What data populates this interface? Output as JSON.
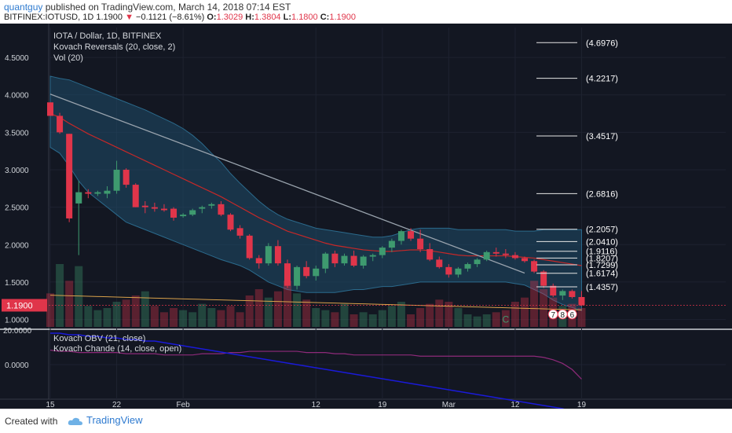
{
  "header": {
    "user": "quantguy",
    "published_text": "published on TradingView.com, March 14, 2018 07:14 EST",
    "symbol": "BITFINEX:IOTUSD, 1D",
    "last": "1.1900",
    "change": "−0.1121 (−8.61%)",
    "o_label": "O:",
    "o_val": "1.3029",
    "h_label": "H:",
    "h_val": "1.3804",
    "l_label": "L:",
    "l_val": "1.1800",
    "c_label": "C:",
    "c_val": "1.1900"
  },
  "legend": {
    "main_title": "IOTA / Dollar, 1D, BITFINEX",
    "ind1": "Kovach Reversals (20, close, 2)",
    "ind2": "Vol (20)",
    "ind3": "Kovach OBV (21, close)",
    "ind4": "Kovach Chande (14, close, open)"
  },
  "footer": {
    "created": "Created with",
    "brand": "TradingView"
  },
  "colors": {
    "up": "#3e9a6f",
    "down": "#e0354a",
    "band": "#1f4d6a",
    "ma": "#c62828",
    "trend": "#9aa4ae",
    "obv": "#1a1ad8",
    "chande": "#8e2a7a"
  },
  "chart_data": {
    "type": "candlestick",
    "price_ticks": [
      "4.5000",
      "4.0000",
      "3.5000",
      "3.0000",
      "2.5000",
      "2.0000",
      "1.5000",
      "1.0000"
    ],
    "price_tick_values": [
      4.5,
      4.0,
      3.5,
      3.0,
      2.5,
      2.0,
      1.5,
      1.0
    ],
    "price_label": "1.1900",
    "price_label_value": 1.19,
    "lower_tick": "0.0000",
    "lower_top_tick": "20.0000",
    "x_ticks": [
      "15",
      "22",
      "Feb",
      "12",
      "19",
      "Mar",
      "12",
      "19"
    ],
    "x_tick_index": [
      0,
      7,
      14,
      28,
      35,
      42,
      49,
      56
    ],
    "fib_levels": [
      {
        "label": "(4.6976)",
        "value": 4.6976
      },
      {
        "label": "(4.2217)",
        "value": 4.2217
      },
      {
        "label": "(3.4517)",
        "value": 3.4517
      },
      {
        "label": "(2.6816)",
        "value": 2.6816
      },
      {
        "label": "(2.2057)",
        "value": 2.2057
      },
      {
        "label": "(2.0410)",
        "value": 2.041
      },
      {
        "label": "(1.9116)",
        "value": 1.9116
      },
      {
        "label": "(1.8207)",
        "value": 1.8207
      },
      {
        "label": "(1.7299)",
        "value": 1.7299
      },
      {
        "label": "(1.6174)",
        "value": 1.6174
      },
      {
        "label": "(1.4357)",
        "value": 1.4357
      }
    ],
    "markers": [
      {
        "label": "C",
        "index": 48
      },
      {
        "label": "7",
        "index": 53
      },
      {
        "label": "8",
        "index": 54
      },
      {
        "label": "6",
        "index": 55
      }
    ],
    "candles": [
      [
        3.9,
        3.9,
        3.72,
        3.72
      ],
      [
        3.72,
        3.76,
        3.48,
        3.5
      ],
      [
        3.48,
        3.48,
        2.3,
        2.35
      ],
      [
        2.55,
        2.85,
        1.86,
        2.7
      ],
      [
        2.7,
        2.74,
        2.62,
        2.68
      ],
      [
        2.68,
        2.72,
        2.65,
        2.7
      ],
      [
        2.68,
        2.78,
        2.62,
        2.72
      ],
      [
        2.72,
        3.12,
        2.68,
        3.0
      ],
      [
        3.0,
        3.02,
        2.76,
        2.8
      ],
      [
        2.8,
        2.82,
        2.5,
        2.5
      ],
      [
        2.52,
        2.58,
        2.42,
        2.5
      ],
      [
        2.5,
        2.56,
        2.44,
        2.48
      ],
      [
        2.48,
        2.54,
        2.44,
        2.46
      ],
      [
        2.48,
        2.5,
        2.32,
        2.36
      ],
      [
        2.38,
        2.42,
        2.36,
        2.4
      ],
      [
        2.4,
        2.48,
        2.38,
        2.46
      ],
      [
        2.48,
        2.52,
        2.42,
        2.5
      ],
      [
        2.52,
        2.56,
        2.48,
        2.54
      ],
      [
        2.54,
        2.58,
        2.38,
        2.4
      ],
      [
        2.4,
        2.42,
        2.18,
        2.2
      ],
      [
        2.22,
        2.26,
        2.08,
        2.12
      ],
      [
        2.12,
        2.14,
        1.8,
        1.82
      ],
      [
        1.82,
        1.86,
        1.68,
        1.75
      ],
      [
        1.75,
        2.02,
        1.72,
        1.98
      ],
      [
        1.98,
        2.06,
        1.72,
        1.75
      ],
      [
        1.75,
        1.8,
        1.42,
        1.45
      ],
      [
        1.45,
        1.72,
        1.4,
        1.7
      ],
      [
        1.7,
        1.78,
        1.55,
        1.58
      ],
      [
        1.58,
        1.72,
        1.52,
        1.68
      ],
      [
        1.68,
        1.9,
        1.62,
        1.88
      ],
      [
        1.88,
        1.92,
        1.7,
        1.75
      ],
      [
        1.75,
        1.88,
        1.72,
        1.85
      ],
      [
        1.85,
        1.92,
        1.7,
        1.72
      ],
      [
        1.72,
        1.86,
        1.68,
        1.84
      ],
      [
        1.84,
        1.88,
        1.78,
        1.86
      ],
      [
        1.86,
        1.98,
        1.82,
        1.96
      ],
      [
        1.96,
        2.08,
        1.9,
        2.05
      ],
      [
        2.05,
        2.2,
        2.0,
        2.18
      ],
      [
        2.18,
        2.22,
        2.05,
        2.08
      ],
      [
        2.08,
        2.2,
        1.9,
        1.94
      ],
      [
        1.94,
        2.02,
        1.78,
        1.8
      ],
      [
        1.8,
        1.84,
        1.68,
        1.7
      ],
      [
        1.7,
        1.74,
        1.56,
        1.6
      ],
      [
        1.6,
        1.7,
        1.56,
        1.68
      ],
      [
        1.68,
        1.76,
        1.64,
        1.74
      ],
      [
        1.74,
        1.82,
        1.7,
        1.8
      ],
      [
        1.8,
        1.92,
        1.78,
        1.9
      ],
      [
        1.9,
        1.96,
        1.84,
        1.88
      ],
      [
        1.88,
        1.94,
        1.82,
        1.86
      ],
      [
        1.86,
        1.9,
        1.8,
        1.82
      ],
      [
        1.82,
        1.84,
        1.76,
        1.78
      ],
      [
        1.78,
        1.8,
        1.62,
        1.64
      ],
      [
        1.64,
        1.66,
        1.42,
        1.45
      ],
      [
        1.45,
        1.48,
        1.3,
        1.32
      ],
      [
        1.32,
        1.4,
        1.26,
        1.38
      ],
      [
        1.38,
        1.4,
        1.28,
        1.3
      ],
      [
        1.3,
        1.38,
        1.18,
        1.19
      ]
    ],
    "volume": [
      32,
      60,
      44,
      58,
      20,
      16,
      18,
      24,
      26,
      30,
      34,
      20,
      14,
      18,
      16,
      14,
      22,
      18,
      16,
      20,
      14,
      30,
      36,
      28,
      34,
      44,
      32,
      26,
      18,
      16,
      14,
      22,
      12,
      14,
      12,
      16,
      20,
      24,
      12,
      18,
      22,
      26,
      24,
      18,
      12,
      10,
      12,
      14,
      16,
      24,
      28,
      44,
      36,
      28,
      20,
      22,
      18
    ],
    "volume_up": [
      0,
      1,
      0,
      1,
      1,
      1,
      1,
      1,
      0,
      0,
      1,
      0,
      0,
      0,
      1,
      1,
      1,
      1,
      0,
      0,
      0,
      0,
      0,
      1,
      0,
      0,
      1,
      0,
      1,
      1,
      0,
      1,
      0,
      1,
      1,
      1,
      1,
      1,
      0,
      0,
      0,
      0,
      0,
      1,
      1,
      1,
      1,
      0,
      0,
      0,
      0,
      0,
      0,
      0,
      1,
      0,
      0
    ],
    "upper_band": [
      4.25,
      4.22,
      4.2,
      4.15,
      4.1,
      4.05,
      4.0,
      3.95,
      3.9,
      3.85,
      3.8,
      3.74,
      3.68,
      3.62,
      3.55,
      3.46,
      3.35,
      3.22,
      3.1,
      2.95,
      2.82,
      2.7,
      2.58,
      2.48,
      2.4,
      2.34,
      2.3,
      2.26,
      2.22,
      2.2,
      2.18,
      2.16,
      2.14,
      2.12,
      2.1,
      2.1,
      2.12,
      2.16,
      2.2,
      2.22,
      2.22,
      2.22,
      2.22,
      2.2,
      2.2,
      2.2,
      2.2,
      2.2,
      2.2,
      2.18,
      2.18,
      2.18,
      2.2,
      2.2,
      2.2,
      2.2,
      2.2
    ],
    "lower_band": [
      3.3,
      3.22,
      3.05,
      2.85,
      2.7,
      2.6,
      2.5,
      2.4,
      2.3,
      2.25,
      2.2,
      2.15,
      2.1,
      2.05,
      2.0,
      1.95,
      1.9,
      1.85,
      1.8,
      1.76,
      1.72,
      1.66,
      1.58,
      1.5,
      1.45,
      1.4,
      1.38,
      1.36,
      1.36,
      1.36,
      1.36,
      1.38,
      1.4,
      1.4,
      1.42,
      1.44,
      1.44,
      1.46,
      1.48,
      1.5,
      1.5,
      1.5,
      1.5,
      1.5,
      1.5,
      1.5,
      1.5,
      1.5,
      1.5,
      1.48,
      1.46,
      1.4,
      1.34,
      1.26,
      1.2,
      1.16,
      1.12
    ],
    "ma": [
      3.75,
      3.7,
      3.62,
      3.55,
      3.48,
      3.42,
      3.36,
      3.3,
      3.24,
      3.18,
      3.12,
      3.06,
      3.0,
      2.94,
      2.88,
      2.82,
      2.76,
      2.7,
      2.64,
      2.57,
      2.5,
      2.43,
      2.36,
      2.3,
      2.24,
      2.18,
      2.14,
      2.1,
      2.06,
      2.02,
      1.99,
      1.97,
      1.95,
      1.93,
      1.92,
      1.91,
      1.91,
      1.92,
      1.93,
      1.93,
      1.92,
      1.9,
      1.88,
      1.86,
      1.85,
      1.85,
      1.85,
      1.85,
      1.85,
      1.84,
      1.83,
      1.82,
      1.8,
      1.78,
      1.76,
      1.74,
      1.72
    ],
    "trendline": [
      [
        0,
        4.01
      ],
      [
        50,
        1.62
      ]
    ],
    "obv": [
      20,
      20,
      19,
      19,
      18,
      18,
      17,
      17,
      16,
      16,
      15,
      15,
      14,
      13,
      12,
      11,
      10,
      9,
      8,
      7,
      6,
      5,
      4,
      3,
      2,
      1,
      0,
      -1,
      -2,
      -3,
      -4,
      -5,
      -6,
      -7,
      -8,
      -9,
      -10,
      -11,
      -12,
      -13,
      -14,
      -15,
      -16,
      -17,
      -18,
      -19,
      -20,
      -21,
      -22,
      -23,
      -24,
      -25,
      -26,
      -27,
      -28,
      -30,
      -32
    ],
    "chande": [
      6,
      5,
      5,
      4,
      4,
      4,
      4,
      4,
      3,
      3,
      3,
      3,
      2,
      2,
      2,
      2,
      3,
      3,
      3,
      4,
      4,
      5,
      5,
      5,
      5,
      5,
      5,
      4,
      4,
      4,
      3,
      3,
      2,
      2,
      2,
      2,
      2,
      2,
      2,
      1,
      1,
      1,
      1,
      1,
      1,
      1,
      1,
      1,
      1,
      1,
      1,
      1,
      0,
      -2,
      -5,
      -10,
      -18
    ],
    "obv_range": [
      -20,
      20
    ],
    "chande_range": [
      -32,
      20
    ]
  }
}
